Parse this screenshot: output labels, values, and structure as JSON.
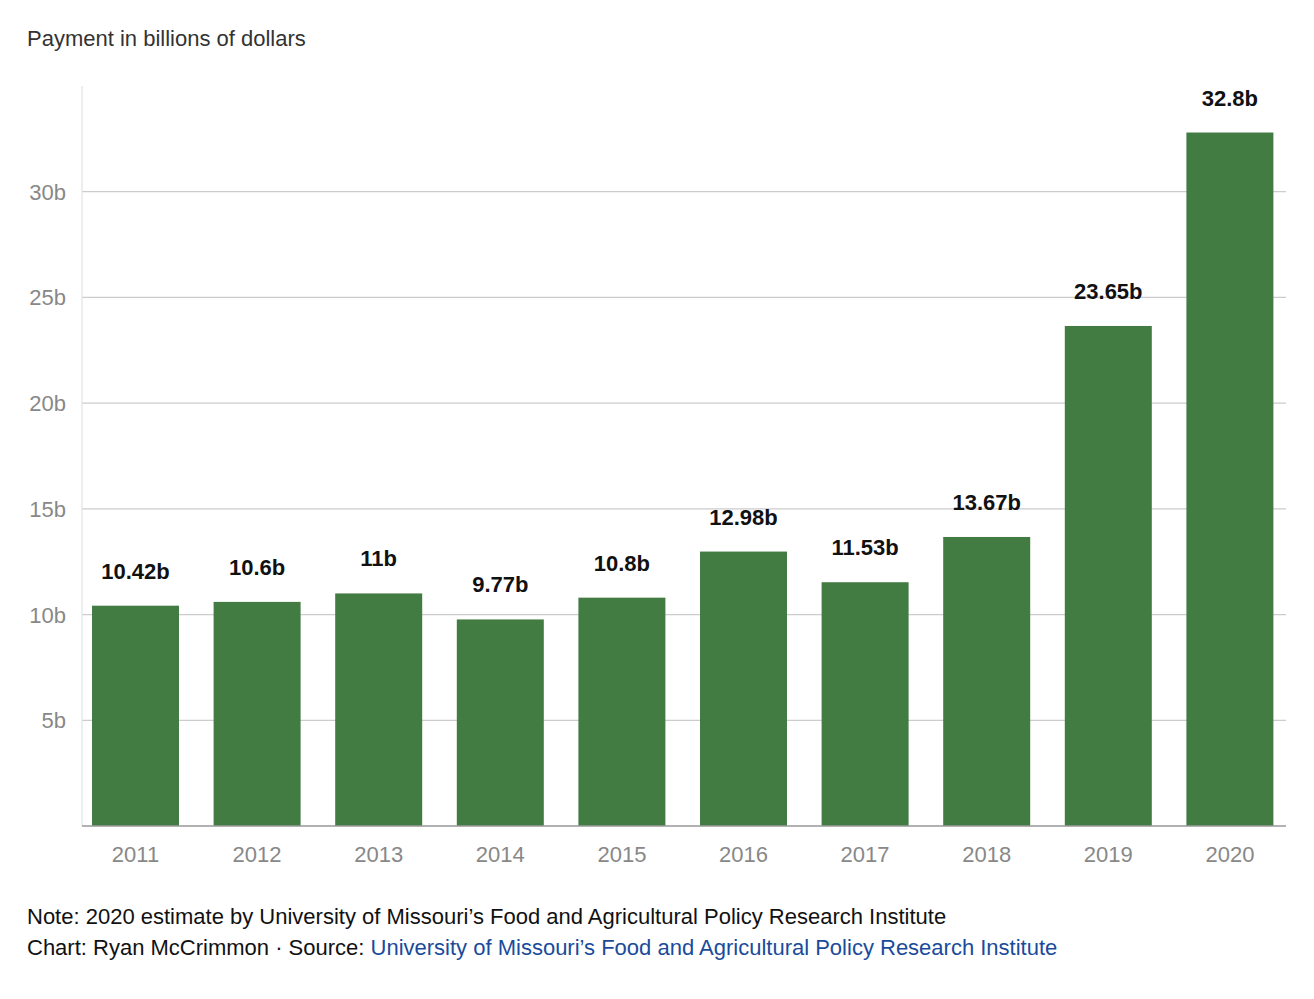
{
  "chart_data": {
    "type": "bar",
    "y_label": "Payment in billions of dollars",
    "categories": [
      "2011",
      "2012",
      "2013",
      "2014",
      "2015",
      "2016",
      "2017",
      "2018",
      "2019",
      "2020"
    ],
    "values": [
      10.42,
      10.6,
      11,
      9.77,
      10.8,
      12.98,
      11.53,
      13.67,
      23.65,
      32.8
    ],
    "value_labels": [
      "10.42b",
      "10.6b",
      "11b",
      "9.77b",
      "10.8b",
      "12.98b",
      "11.53b",
      "13.67b",
      "23.65b",
      "32.8b"
    ],
    "color": "#437c42",
    "ylim": [
      0,
      35
    ],
    "yticks": [
      {
        "value": 5,
        "label": "5b"
      },
      {
        "value": 10,
        "label": "10b"
      },
      {
        "value": 15,
        "label": "15b"
      },
      {
        "value": 20,
        "label": "20b"
      },
      {
        "value": 25,
        "label": "25b"
      },
      {
        "value": 30,
        "label": "30b"
      }
    ],
    "grid": true,
    "data_labels": true,
    "note": "Note: 2020 estimate by University of Missouri’s Food and Agricultural Policy Research Institute",
    "credit": "Chart: Ryan McCrimmon · Source: ",
    "source": "University of Missouri’s Food and Agricultural Policy Research Institute"
  }
}
